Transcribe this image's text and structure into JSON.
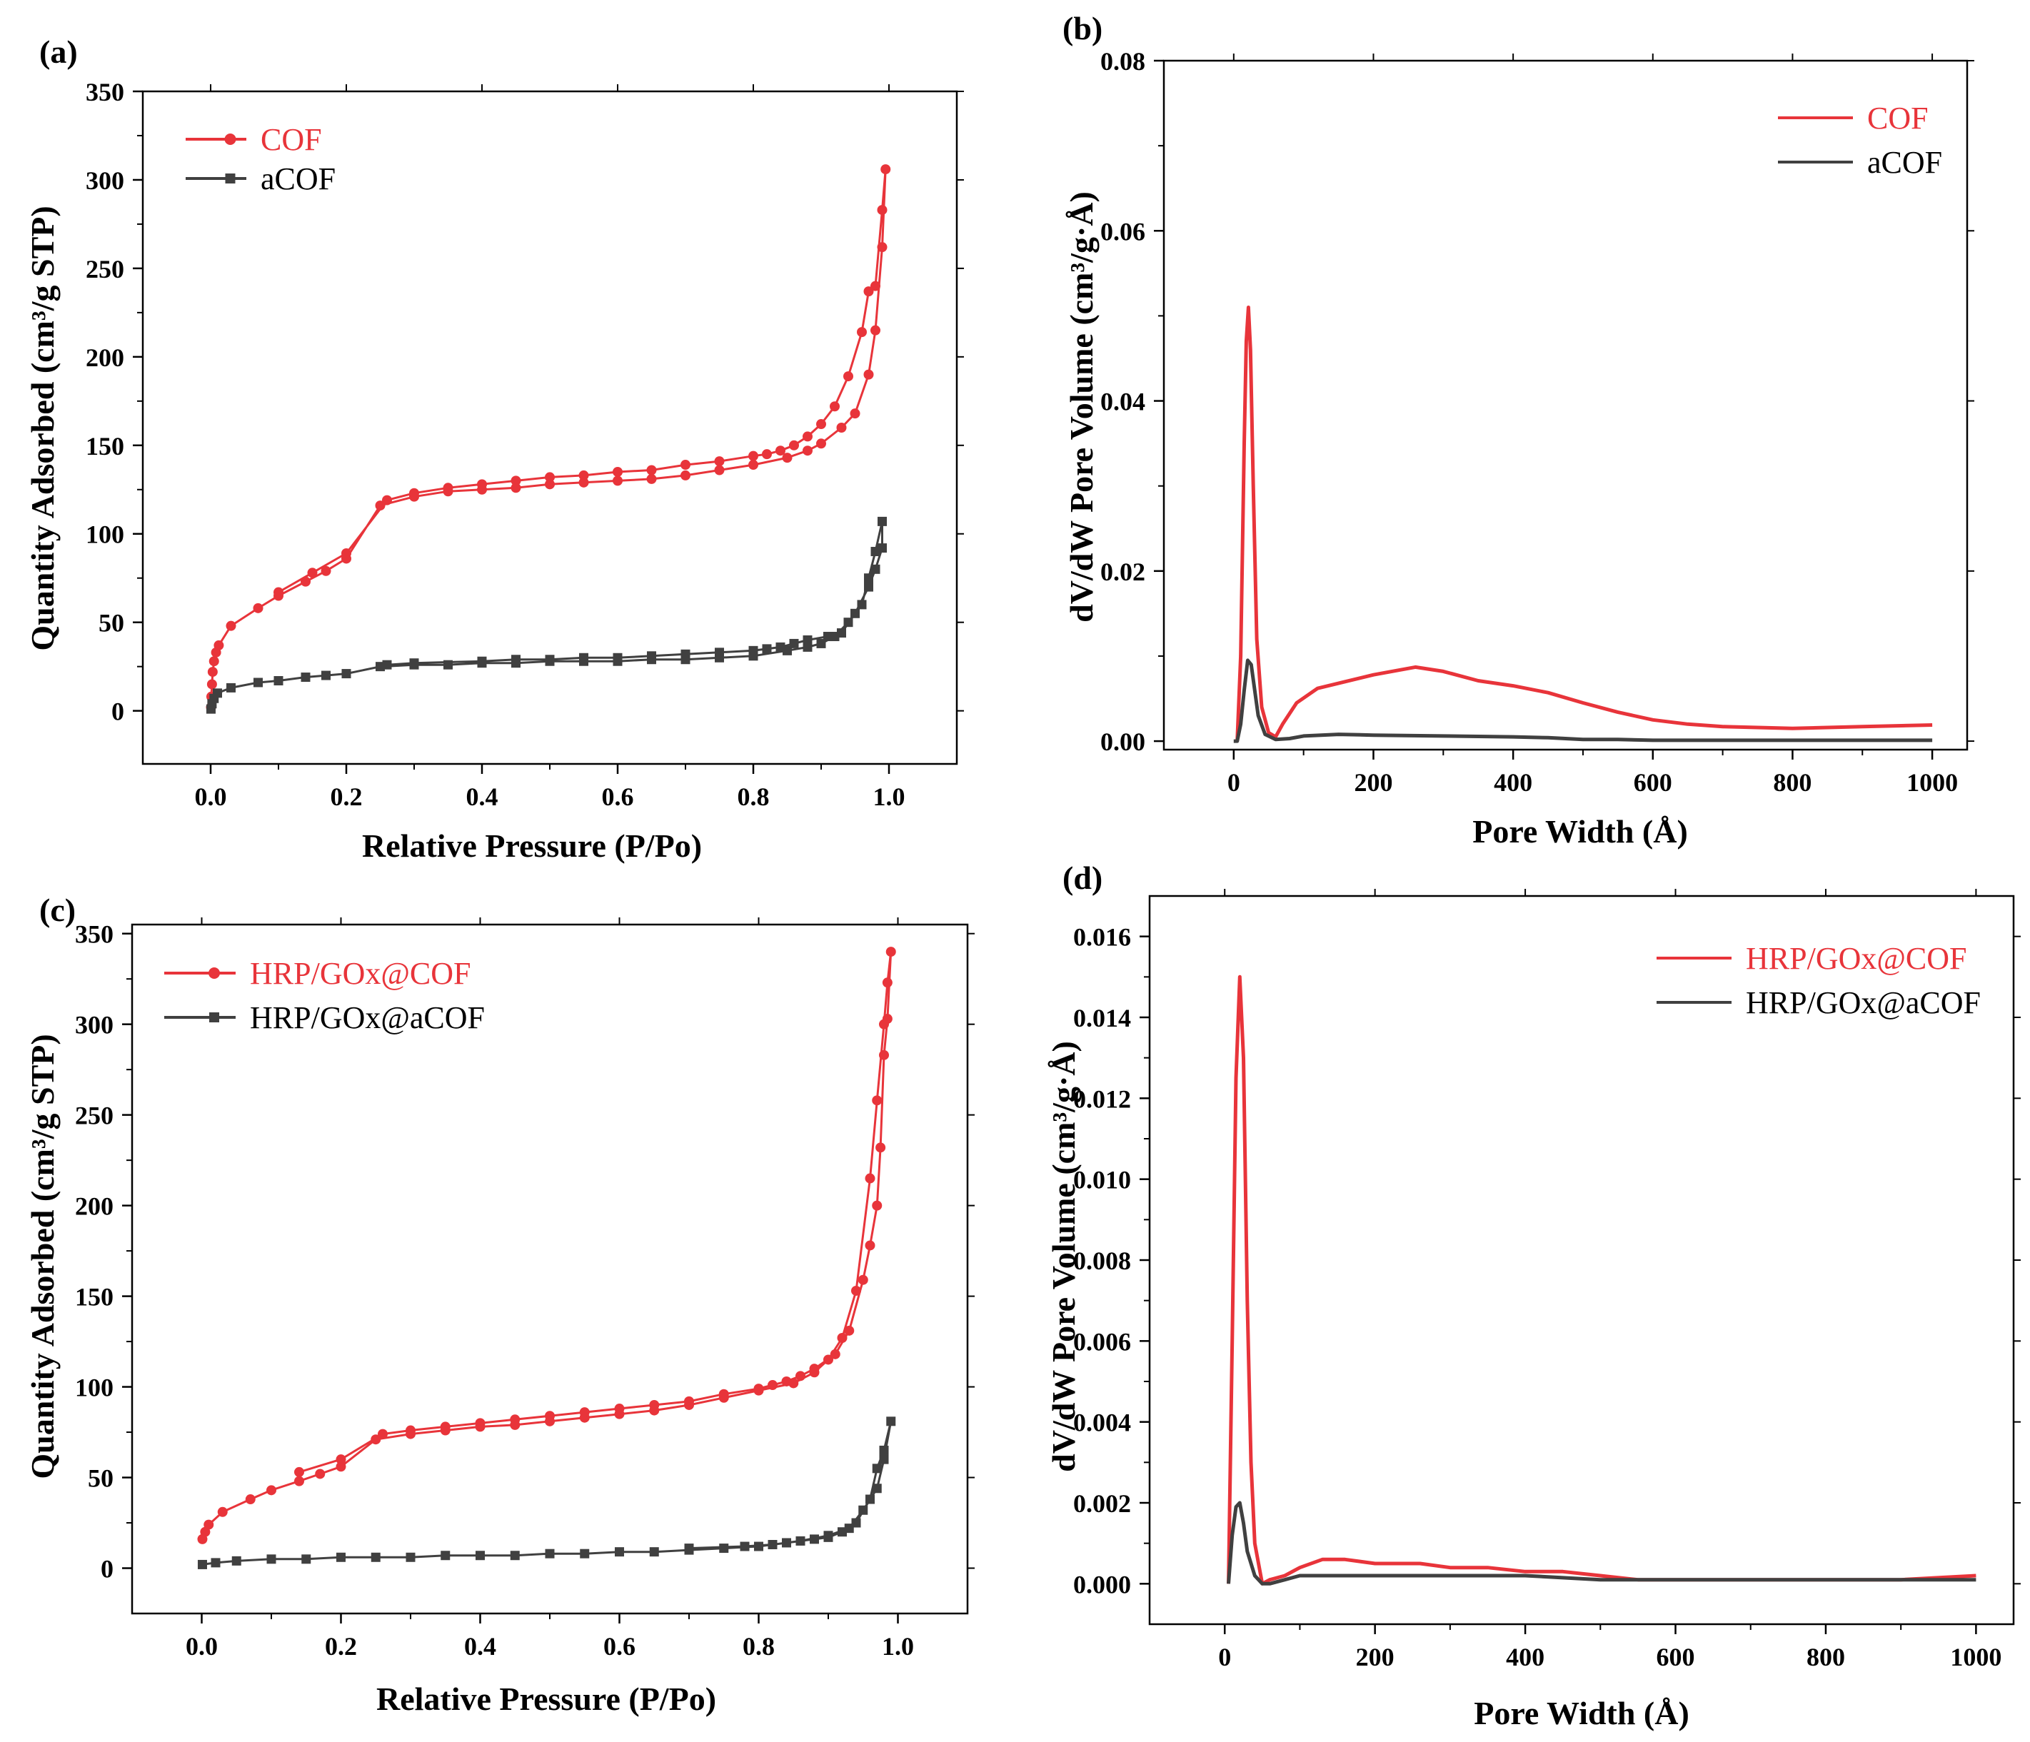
{
  "colors": {
    "red": "#e8343a",
    "dark": "#404040",
    "axis": "#000000"
  },
  "chart_data": [
    {
      "panel": "(a)",
      "type": "line",
      "marker": true,
      "xlabel": "Relative Pressure (P/Po)",
      "ylabel": "Quantity Adsorbed (cm³/g STP)",
      "xlim": [
        -0.1,
        1.1
      ],
      "ylim": [
        -30,
        350
      ],
      "xticks": [
        0.0,
        0.2,
        0.4,
        0.6,
        0.8,
        1.0
      ],
      "xtick_labels": [
        "0.0",
        "0.2",
        "0.4",
        "0.6",
        "0.8",
        "1.0"
      ],
      "yticks": [
        0,
        50,
        100,
        150,
        200,
        250,
        300,
        350
      ],
      "ytick_labels": [
        "0",
        "50",
        "100",
        "150",
        "200",
        "250",
        "300",
        "350"
      ],
      "legend_position": "top-left",
      "series": [
        {
          "name": "COF",
          "color": "#e8343a",
          "marker": "circle",
          "x": [
            0.0005,
            0.001,
            0.002,
            0.003,
            0.005,
            0.008,
            0.012,
            0.03,
            0.07,
            0.1,
            0.14,
            0.17,
            0.2,
            0.25,
            0.3,
            0.35,
            0.4,
            0.45,
            0.5,
            0.55,
            0.6,
            0.65,
            0.7,
            0.75,
            0.8,
            0.85,
            0.88,
            0.9,
            0.93,
            0.95,
            0.97,
            0.98,
            0.99,
            0.995,
            0.99,
            0.98,
            0.97,
            0.96,
            0.94,
            0.92,
            0.9,
            0.88,
            0.86,
            0.84,
            0.82,
            0.8,
            0.75,
            0.7,
            0.65,
            0.6,
            0.55,
            0.5,
            0.45,
            0.4,
            0.35,
            0.3,
            0.26,
            0.2,
            0.15,
            0.1
          ],
          "y": [
            2,
            8,
            15,
            22,
            28,
            33,
            37,
            48,
            58,
            65,
            73,
            79,
            86,
            116,
            121,
            124,
            125,
            126,
            128,
            129,
            130,
            131,
            133,
            136,
            139,
            143,
            147,
            151,
            160,
            168,
            190,
            215,
            262,
            306,
            283,
            240,
            237,
            214,
            189,
            172,
            162,
            155,
            150,
            147,
            145,
            144,
            141,
            139,
            136,
            135,
            133,
            132,
            130,
            128,
            126,
            123,
            119,
            89,
            78,
            67
          ]
        },
        {
          "name": "aCOF",
          "color": "#404040",
          "marker": "square",
          "x": [
            0.0005,
            0.002,
            0.005,
            0.01,
            0.03,
            0.07,
            0.1,
            0.14,
            0.17,
            0.2,
            0.25,
            0.3,
            0.35,
            0.4,
            0.45,
            0.5,
            0.55,
            0.6,
            0.65,
            0.7,
            0.75,
            0.8,
            0.85,
            0.88,
            0.9,
            0.92,
            0.94,
            0.96,
            0.97,
            0.98,
            0.99,
            0.99,
            0.98,
            0.97,
            0.95,
            0.93,
            0.91,
            0.88,
            0.86,
            0.84,
            0.82,
            0.8,
            0.75,
            0.7,
            0.65,
            0.6,
            0.55,
            0.5,
            0.45,
            0.4,
            0.3,
            0.26
          ],
          "y": [
            1,
            4,
            7,
            10,
            13,
            16,
            17,
            19,
            20,
            21,
            25,
            26,
            26,
            27,
            27,
            28,
            28,
            28,
            29,
            29,
            30,
            31,
            34,
            36,
            38,
            42,
            50,
            60,
            75,
            90,
            107,
            92,
            80,
            70,
            55,
            44,
            42,
            40,
            38,
            36,
            35,
            34,
            33,
            32,
            31,
            30,
            30,
            29,
            29,
            28,
            27,
            26
          ]
        }
      ]
    },
    {
      "panel": "(b)",
      "type": "line",
      "marker": false,
      "xlabel": "Pore Width (Å)",
      "ylabel": "dV/dW Pore Volume (cm³/g·Å)",
      "xlim": [
        -100,
        1050
      ],
      "ylim": [
        -0.001,
        0.08
      ],
      "xticks": [
        0,
        200,
        400,
        600,
        800,
        1000
      ],
      "xtick_labels": [
        "0",
        "200",
        "400",
        "600",
        "800",
        "1000"
      ],
      "yticks": [
        0.0,
        0.02,
        0.04,
        0.06,
        0.08
      ],
      "ytick_labels": [
        "0.00",
        "0.02",
        "0.04",
        "0.06",
        "0.08"
      ],
      "legend_position": "top-right",
      "series": [
        {
          "name": "COF",
          "color": "#e8343a",
          "x": [
            5,
            10,
            15,
            18,
            21,
            24,
            28,
            33,
            40,
            50,
            60,
            70,
            90,
            120,
            160,
            200,
            260,
            300,
            350,
            400,
            450,
            500,
            550,
            600,
            650,
            700,
            750,
            800,
            850,
            900,
            950,
            1000
          ],
          "y": [
            0.0,
            0.01,
            0.035,
            0.047,
            0.051,
            0.046,
            0.03,
            0.012,
            0.004,
            0.001,
            0.0005,
            0.002,
            0.0045,
            0.0062,
            0.007,
            0.0078,
            0.0087,
            0.0082,
            0.0071,
            0.0065,
            0.0057,
            0.0045,
            0.0034,
            0.0025,
            0.002,
            0.0017,
            0.0016,
            0.0015,
            0.0016,
            0.0017,
            0.0018,
            0.0019
          ]
        },
        {
          "name": "aCOF",
          "color": "#404040",
          "x": [
            0,
            5,
            10,
            15,
            20,
            25,
            30,
            35,
            45,
            60,
            80,
            100,
            150,
            200,
            300,
            400,
            450,
            500,
            550,
            600,
            700,
            800,
            900,
            1000
          ],
          "y": [
            0.0,
            0.0,
            0.002,
            0.006,
            0.0095,
            0.009,
            0.006,
            0.003,
            0.0008,
            0.0002,
            0.0003,
            0.0006,
            0.0008,
            0.0007,
            0.0006,
            0.0005,
            0.0004,
            0.0002,
            0.0002,
            0.0001,
            0.0001,
            0.0001,
            0.0001,
            0.0001
          ]
        }
      ]
    },
    {
      "panel": "(c)",
      "type": "line",
      "marker": true,
      "xlabel": "Relative Pressure (P/Po)",
      "ylabel": "Quantity Adsorbed (cm³/g STP)",
      "xlim": [
        -0.1,
        1.1
      ],
      "ylim": [
        -25,
        355
      ],
      "xticks": [
        0.0,
        0.2,
        0.4,
        0.6,
        0.8,
        1.0
      ],
      "xtick_labels": [
        "0.0",
        "0.2",
        "0.4",
        "0.6",
        "0.8",
        "1.0"
      ],
      "yticks": [
        0,
        50,
        100,
        150,
        200,
        250,
        300,
        350
      ],
      "ytick_labels": [
        "0",
        "50",
        "100",
        "150",
        "200",
        "250",
        "300",
        "350"
      ],
      "legend_position": "top-left",
      "series": [
        {
          "name": "HRP/GOx@COF",
          "color": "#e8343a",
          "marker": "circle",
          "x": [
            0.001,
            0.005,
            0.01,
            0.03,
            0.07,
            0.1,
            0.14,
            0.17,
            0.2,
            0.25,
            0.3,
            0.35,
            0.4,
            0.45,
            0.5,
            0.55,
            0.6,
            0.65,
            0.7,
            0.75,
            0.8,
            0.85,
            0.88,
            0.9,
            0.92,
            0.94,
            0.96,
            0.97,
            0.98,
            0.985,
            0.99,
            0.985,
            0.98,
            0.975,
            0.97,
            0.96,
            0.95,
            0.93,
            0.91,
            0.88,
            0.86,
            0.84,
            0.82,
            0.8,
            0.75,
            0.7,
            0.65,
            0.6,
            0.55,
            0.5,
            0.45,
            0.4,
            0.35,
            0.3,
            0.26,
            0.2,
            0.14
          ],
          "y": [
            16,
            20,
            24,
            31,
            38,
            43,
            48,
            52,
            56,
            71,
            74,
            76,
            78,
            79,
            81,
            83,
            85,
            87,
            90,
            94,
            98,
            102,
            108,
            115,
            127,
            153,
            215,
            258,
            300,
            323,
            340,
            303,
            283,
            232,
            200,
            178,
            159,
            131,
            118,
            110,
            106,
            103,
            101,
            99,
            96,
            92,
            90,
            88,
            86,
            84,
            82,
            80,
            78,
            76,
            74,
            60,
            53
          ]
        },
        {
          "name": "HRP/GOx@aCOF",
          "color": "#404040",
          "marker": "square",
          "x": [
            0.001,
            0.02,
            0.05,
            0.1,
            0.15,
            0.2,
            0.25,
            0.3,
            0.35,
            0.4,
            0.45,
            0.5,
            0.55,
            0.6,
            0.65,
            0.7,
            0.75,
            0.8,
            0.84,
            0.88,
            0.9,
            0.92,
            0.94,
            0.96,
            0.97,
            0.98,
            0.99,
            0.98,
            0.97,
            0.95,
            0.93,
            0.9,
            0.86,
            0.82,
            0.78,
            0.7
          ],
          "y": [
            2,
            3,
            4,
            5,
            5,
            6,
            6,
            6,
            7,
            7,
            7,
            8,
            8,
            9,
            9,
            10,
            11,
            12,
            14,
            16,
            17,
            20,
            25,
            38,
            55,
            65,
            81,
            60,
            44,
            32,
            22,
            18,
            15,
            13,
            12,
            11
          ]
        }
      ]
    },
    {
      "panel": "(d)",
      "type": "line",
      "marker": false,
      "xlabel": "Pore Width (Å)",
      "ylabel": "dV/dW Pore Volume (cm³/g·Å)",
      "xlim": [
        -100,
        1050
      ],
      "ylim": [
        -0.001,
        0.017
      ],
      "xticks": [
        0,
        200,
        400,
        600,
        800,
        1000
      ],
      "xtick_labels": [
        "0",
        "200",
        "400",
        "600",
        "800",
        "1000"
      ],
      "yticks": [
        0.0,
        0.002,
        0.004,
        0.006,
        0.008,
        0.01,
        0.012,
        0.014,
        0.016
      ],
      "ytick_labels": [
        "0.000",
        "0.002",
        "0.004",
        "0.006",
        "0.008",
        "0.010",
        "0.012",
        "0.014",
        "0.016"
      ],
      "legend_position": "top-right",
      "series": [
        {
          "name": "HRP/GOx@COF",
          "color": "#e8343a",
          "x": [
            5,
            10,
            15,
            20,
            25,
            30,
            35,
            40,
            50,
            60,
            80,
            100,
            130,
            160,
            200,
            260,
            300,
            350,
            400,
            450,
            500,
            550,
            600,
            650,
            700,
            800,
            900,
            1000
          ],
          "y": [
            0.0,
            0.006,
            0.0125,
            0.015,
            0.013,
            0.007,
            0.003,
            0.001,
            0.0,
            0.0001,
            0.0002,
            0.0004,
            0.0006,
            0.0006,
            0.0005,
            0.0005,
            0.0004,
            0.0004,
            0.0003,
            0.0003,
            0.0002,
            0.0001,
            0.0001,
            0.0001,
            0.0001,
            0.0001,
            0.0001,
            0.0002
          ]
        },
        {
          "name": "HRP/GOx@aCOF",
          "color": "#404040",
          "x": [
            5,
            10,
            15,
            20,
            25,
            30,
            40,
            50,
            60,
            80,
            100,
            130,
            200,
            300,
            400,
            500,
            600,
            700,
            800,
            900,
            1000
          ],
          "y": [
            0.0,
            0.0012,
            0.0019,
            0.002,
            0.0015,
            0.0008,
            0.0002,
            0.0,
            0.0,
            0.0001,
            0.0002,
            0.0002,
            0.0002,
            0.0002,
            0.0002,
            0.0001,
            0.0001,
            0.0001,
            0.0001,
            0.0001,
            0.0001
          ]
        }
      ]
    }
  ]
}
